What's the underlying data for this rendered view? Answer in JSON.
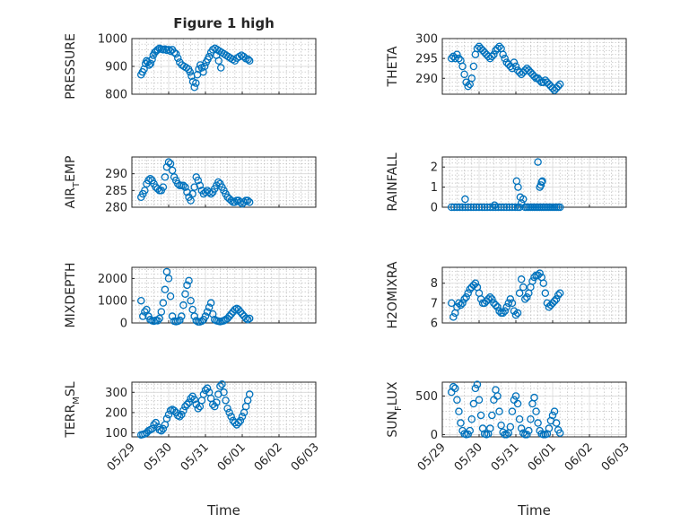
{
  "figure_title": "Figure 1 high",
  "x_label": "Time",
  "x_ticks": [
    "05/29",
    "05/30",
    "05/31",
    "06/01",
    "06/02",
    "06/03"
  ],
  "colors": {
    "marker": "#0072bd",
    "axis": "#262626",
    "grid": "#d9d9d9"
  },
  "chart_data": [
    {
      "type": "scatter",
      "title": "Figure 1 high",
      "ylabel": "PRESSURE",
      "ylim": [
        800,
        1000
      ],
      "yticks": [
        "800",
        "900",
        "1000"
      ],
      "xlabel": "",
      "x": [
        0.25,
        0.29,
        0.33,
        0.37,
        0.4,
        0.43,
        0.47,
        0.51,
        0.55,
        0.58,
        0.62,
        0.66,
        0.7,
        0.75,
        0.8,
        0.85,
        0.9,
        0.95,
        1.0,
        1.05,
        1.1,
        1.15,
        1.2,
        1.25,
        1.3,
        1.36,
        1.42,
        1.48,
        1.54,
        1.58,
        1.62,
        1.66,
        1.7,
        1.74,
        1.78,
        1.82,
        1.86,
        1.9,
        1.94,
        1.98,
        2.02,
        2.06,
        2.1,
        2.15,
        2.2,
        2.26,
        2.32,
        2.38,
        2.44,
        2.5,
        2.56,
        2.62,
        2.68,
        2.74,
        2.8,
        2.86,
        2.92,
        2.98,
        3.04,
        3.1,
        3.16,
        3.2,
        2.3,
        2.36,
        2.42
      ],
      "y": [
        870,
        880,
        890,
        910,
        920,
        915,
        905,
        910,
        925,
        940,
        950,
        955,
        960,
        965,
        962,
        960,
        962,
        958,
        960,
        955,
        960,
        950,
        945,
        930,
        915,
        905,
        900,
        895,
        890,
        880,
        865,
        845,
        825,
        840,
        870,
        890,
        905,
        895,
        880,
        900,
        915,
        925,
        935,
        950,
        960,
        965,
        960,
        955,
        950,
        945,
        940,
        935,
        930,
        925,
        920,
        930,
        935,
        940,
        935,
        928,
        925,
        920,
        940,
        920,
        895
      ]
    },
    {
      "type": "scatter",
      "ylabel": "THETA",
      "ylim": [
        286,
        300
      ],
      "yticks": [
        "290",
        "295",
        "300"
      ],
      "xlabel": "",
      "x": [
        0.25,
        0.3,
        0.35,
        0.4,
        0.45,
        0.5,
        0.55,
        0.6,
        0.65,
        0.7,
        0.75,
        0.8,
        0.85,
        0.9,
        0.95,
        1.0,
        1.05,
        1.1,
        1.15,
        1.2,
        1.25,
        1.3,
        1.35,
        1.4,
        1.45,
        1.5,
        1.55,
        1.6,
        1.65,
        1.7,
        1.75,
        1.8,
        1.85,
        1.9,
        1.95,
        2.0,
        2.05,
        2.1,
        2.15,
        2.2,
        2.25,
        2.3,
        2.35,
        2.4,
        2.45,
        2.5,
        2.55,
        2.6,
        2.65,
        2.7,
        2.75,
        2.8,
        2.85,
        2.9,
        2.95,
        3.0,
        3.05,
        3.1,
        3.15,
        3.2
      ],
      "y": [
        295,
        295.5,
        295,
        296,
        295,
        294.5,
        293,
        291,
        289,
        288,
        288.5,
        290,
        293,
        296,
        297.5,
        298,
        297.5,
        297,
        296.5,
        296,
        295.5,
        295,
        295.5,
        296,
        297,
        297.5,
        298,
        297.5,
        296,
        295,
        294,
        293.5,
        293,
        292.5,
        294,
        293,
        292,
        291.5,
        291,
        291.5,
        292,
        292.5,
        292,
        291.5,
        291,
        290.5,
        290,
        290,
        289.5,
        289,
        289,
        289.5,
        289,
        288.5,
        288,
        287.5,
        287,
        287.5,
        288,
        288.5
      ]
    },
    {
      "type": "scatter",
      "ylabel": "AIR_TEMP",
      "ylim": [
        280,
        295
      ],
      "yticks": [
        "280",
        "285",
        "290"
      ],
      "xlabel": "",
      "x": [
        0.25,
        0.3,
        0.35,
        0.4,
        0.45,
        0.5,
        0.55,
        0.6,
        0.65,
        0.7,
        0.75,
        0.8,
        0.85,
        0.9,
        0.95,
        1.0,
        1.05,
        1.1,
        1.15,
        1.2,
        1.25,
        1.3,
        1.35,
        1.4,
        1.45,
        1.5,
        1.55,
        1.6,
        1.65,
        1.7,
        1.75,
        1.8,
        1.85,
        1.9,
        1.95,
        2.0,
        2.05,
        2.1,
        2.15,
        2.2,
        2.25,
        2.3,
        2.35,
        2.4,
        2.45,
        2.5,
        2.55,
        2.6,
        2.65,
        2.7,
        2.75,
        2.8,
        2.85,
        2.9,
        2.95,
        3.0,
        3.05,
        3.1,
        3.15,
        3.2
      ],
      "y": [
        283,
        284,
        285,
        287,
        288,
        288.5,
        288,
        287,
        286,
        285.5,
        285,
        285,
        286,
        289,
        292,
        293.5,
        293,
        291,
        289,
        288,
        287,
        286.5,
        286.5,
        286.5,
        286,
        284.5,
        283,
        282,
        284,
        286,
        289,
        288,
        286.5,
        285,
        284,
        284.5,
        285,
        284.5,
        284,
        284.5,
        285.5,
        286.5,
        287.5,
        287,
        286,
        285,
        284,
        283,
        282.5,
        282,
        281.5,
        281.5,
        282,
        282,
        281.5,
        281,
        281.5,
        282,
        282,
        281.5
      ]
    },
    {
      "type": "scatter",
      "ylabel": "RAINFALL",
      "ylim": [
        0,
        2.5
      ],
      "yticks": [
        "0",
        "1",
        "2"
      ],
      "xlabel": "",
      "x": [
        0.25,
        0.32,
        0.4,
        0.48,
        0.55,
        0.62,
        0.7,
        0.78,
        0.85,
        0.92,
        1.0,
        1.08,
        1.15,
        1.22,
        1.3,
        1.38,
        1.45,
        1.52,
        1.6,
        1.68,
        1.75,
        1.82,
        1.9,
        1.98,
        2.05,
        2.1,
        2.15,
        2.2,
        2.25,
        2.3,
        2.35,
        2.4,
        2.45,
        2.5,
        2.55,
        2.6,
        2.65,
        2.7,
        2.75,
        2.8,
        2.85,
        2.9,
        2.95,
        3.0,
        3.05,
        3.1,
        3.15,
        3.2,
        0.62,
        1.42,
        2.02,
        2.06,
        2.12,
        2.6,
        2.65,
        2.7,
        2.72,
        2.68
      ],
      "y": [
        0,
        0,
        0,
        0,
        0,
        0,
        0,
        0,
        0,
        0,
        0,
        0,
        0,
        0,
        0,
        0,
        0,
        0,
        0,
        0,
        0,
        0,
        0,
        0,
        0,
        0,
        0.2,
        0.4,
        0,
        0,
        0,
        0,
        0,
        0,
        0,
        0,
        0,
        0,
        0,
        0,
        0,
        0,
        0,
        0,
        0,
        0,
        0,
        0,
        0.4,
        0.1,
        1.3,
        1,
        0.5,
        2.25,
        1,
        1.25,
        1.3,
        1.1
      ]
    },
    {
      "type": "scatter",
      "ylabel": "MIXDEPTH",
      "ylim": [
        0,
        2500
      ],
      "yticks": [
        "0",
        "1000",
        "2000"
      ],
      "xlabel": "",
      "x": [
        0.25,
        0.3,
        0.35,
        0.4,
        0.45,
        0.5,
        0.55,
        0.6,
        0.65,
        0.7,
        0.75,
        0.8,
        0.85,
        0.9,
        0.95,
        1.0,
        1.05,
        1.1,
        1.15,
        1.2,
        1.25,
        1.3,
        1.35,
        1.4,
        1.45,
        1.5,
        1.55,
        1.6,
        1.65,
        1.7,
        1.75,
        1.8,
        1.85,
        1.9,
        1.95,
        2.0,
        2.05,
        2.1,
        2.15,
        2.2,
        2.25,
        2.3,
        2.35,
        2.4,
        2.45,
        2.5,
        2.55,
        2.6,
        2.65,
        2.7,
        2.75,
        2.8,
        2.85,
        2.9,
        2.95,
        3.0,
        3.05,
        3.1,
        3.15,
        3.2
      ],
      "y": [
        1000,
        300,
        500,
        600,
        300,
        150,
        100,
        80,
        120,
        100,
        200,
        500,
        900,
        1500,
        2300,
        2000,
        1200,
        300,
        80,
        60,
        80,
        120,
        300,
        800,
        1300,
        1700,
        1900,
        1000,
        600,
        300,
        100,
        50,
        50,
        80,
        150,
        300,
        500,
        700,
        900,
        400,
        150,
        100,
        80,
        60,
        80,
        100,
        150,
        200,
        300,
        400,
        500,
        600,
        650,
        600,
        500,
        400,
        300,
        200,
        150,
        200
      ]
    },
    {
      "type": "scatter",
      "ylabel": "H2OMIXRA",
      "ylim": [
        6,
        8.8
      ],
      "yticks": [
        "6",
        "7",
        "8"
      ],
      "xlabel": "",
      "x": [
        0.25,
        0.3,
        0.35,
        0.4,
        0.45,
        0.5,
        0.55,
        0.6,
        0.65,
        0.7,
        0.75,
        0.8,
        0.85,
        0.9,
        0.95,
        1.0,
        1.05,
        1.1,
        1.15,
        1.2,
        1.25,
        1.3,
        1.35,
        1.4,
        1.45,
        1.5,
        1.55,
        1.6,
        1.65,
        1.7,
        1.75,
        1.8,
        1.85,
        1.9,
        1.95,
        2.0,
        2.05,
        2.1,
        2.15,
        2.2,
        2.25,
        2.3,
        2.35,
        2.4,
        2.45,
        2.5,
        2.55,
        2.6,
        2.65,
        2.7,
        2.75,
        2.8,
        2.85,
        2.9,
        2.95,
        3.0,
        3.05,
        3.1,
        3.15,
        3.2
      ],
      "y": [
        7,
        6.3,
        6.5,
        6.8,
        7,
        6.9,
        7,
        7.2,
        7.3,
        7.5,
        7.7,
        7.8,
        7.9,
        8,
        7.8,
        7.5,
        7.2,
        7,
        7,
        7.1,
        7.2,
        7.3,
        7.2,
        7,
        6.9,
        6.8,
        6.6,
        6.5,
        6.5,
        6.6,
        6.8,
        7,
        7.2,
        7,
        6.6,
        6.4,
        6.5,
        7.5,
        8.2,
        7.8,
        7.2,
        7.3,
        7.5,
        7.8,
        8.1,
        8.3,
        8.4,
        8.4,
        8.5,
        8.3,
        8,
        7.5,
        7,
        6.8,
        6.9,
        7,
        7.1,
        7.2,
        7.4,
        7.5
      ]
    },
    {
      "type": "scatter",
      "ylabel": "TERR_MSL",
      "ylim": [
        80,
        350
      ],
      "yticks": [
        "100",
        "200",
        "300"
      ],
      "xlabel": "",
      "x": [
        0.25,
        0.3,
        0.35,
        0.4,
        0.45,
        0.5,
        0.55,
        0.6,
        0.65,
        0.7,
        0.75,
        0.8,
        0.85,
        0.9,
        0.95,
        1.0,
        1.05,
        1.1,
        1.15,
        1.2,
        1.25,
        1.3,
        1.35,
        1.4,
        1.45,
        1.5,
        1.55,
        1.6,
        1.65,
        1.7,
        1.75,
        1.8,
        1.85,
        1.9,
        1.95,
        2.0,
        2.05,
        2.1,
        2.15,
        2.2,
        2.25,
        2.3,
        2.35,
        2.4,
        2.45,
        2.5,
        2.55,
        2.6,
        2.65,
        2.7,
        2.75,
        2.8,
        2.85,
        2.9,
        2.95,
        3.0,
        3.05,
        3.1,
        3.15,
        3.2
      ],
      "y": [
        90,
        92,
        95,
        100,
        110,
        115,
        120,
        140,
        150,
        130,
        115,
        110,
        120,
        140,
        170,
        190,
        210,
        215,
        210,
        200,
        185,
        180,
        190,
        210,
        230,
        240,
        250,
        270,
        280,
        265,
        240,
        220,
        230,
        260,
        290,
        310,
        320,
        300,
        270,
        240,
        230,
        250,
        290,
        330,
        340,
        300,
        260,
        220,
        200,
        180,
        160,
        150,
        140,
        150,
        160,
        180,
        200,
        230,
        260,
        290
      ]
    },
    {
      "type": "scatter",
      "ylabel": "SUN_FLUX",
      "ylim": [
        -30,
        680
      ],
      "yticks": [
        "0",
        "500"
      ],
      "xlabel": "",
      "x": [
        0.25,
        0.3,
        0.35,
        0.4,
        0.45,
        0.5,
        0.55,
        0.6,
        0.65,
        0.7,
        0.75,
        0.8,
        0.85,
        0.9,
        0.95,
        1.0,
        1.05,
        1.1,
        1.15,
        1.2,
        1.25,
        1.3,
        1.35,
        1.4,
        1.45,
        1.5,
        1.55,
        1.6,
        1.65,
        1.7,
        1.75,
        1.8,
        1.85,
        1.9,
        1.95,
        2.0,
        2.05,
        2.1,
        2.15,
        2.2,
        2.25,
        2.3,
        2.35,
        2.4,
        2.45,
        2.5,
        2.55,
        2.6,
        2.65,
        2.7,
        2.75,
        2.8,
        2.85,
        2.9,
        2.95,
        3.0,
        3.05,
        3.1,
        3.15,
        3.2
      ],
      "y": [
        550,
        620,
        600,
        450,
        300,
        150,
        50,
        10,
        0,
        5,
        50,
        200,
        400,
        600,
        650,
        450,
        250,
        80,
        10,
        0,
        10,
        80,
        250,
        450,
        580,
        500,
        300,
        120,
        30,
        0,
        0,
        20,
        100,
        300,
        450,
        500,
        400,
        200,
        80,
        20,
        0,
        0,
        50,
        200,
        400,
        480,
        300,
        150,
        50,
        10,
        0,
        0,
        10,
        80,
        180,
        250,
        300,
        150,
        60,
        20
      ]
    }
  ]
}
